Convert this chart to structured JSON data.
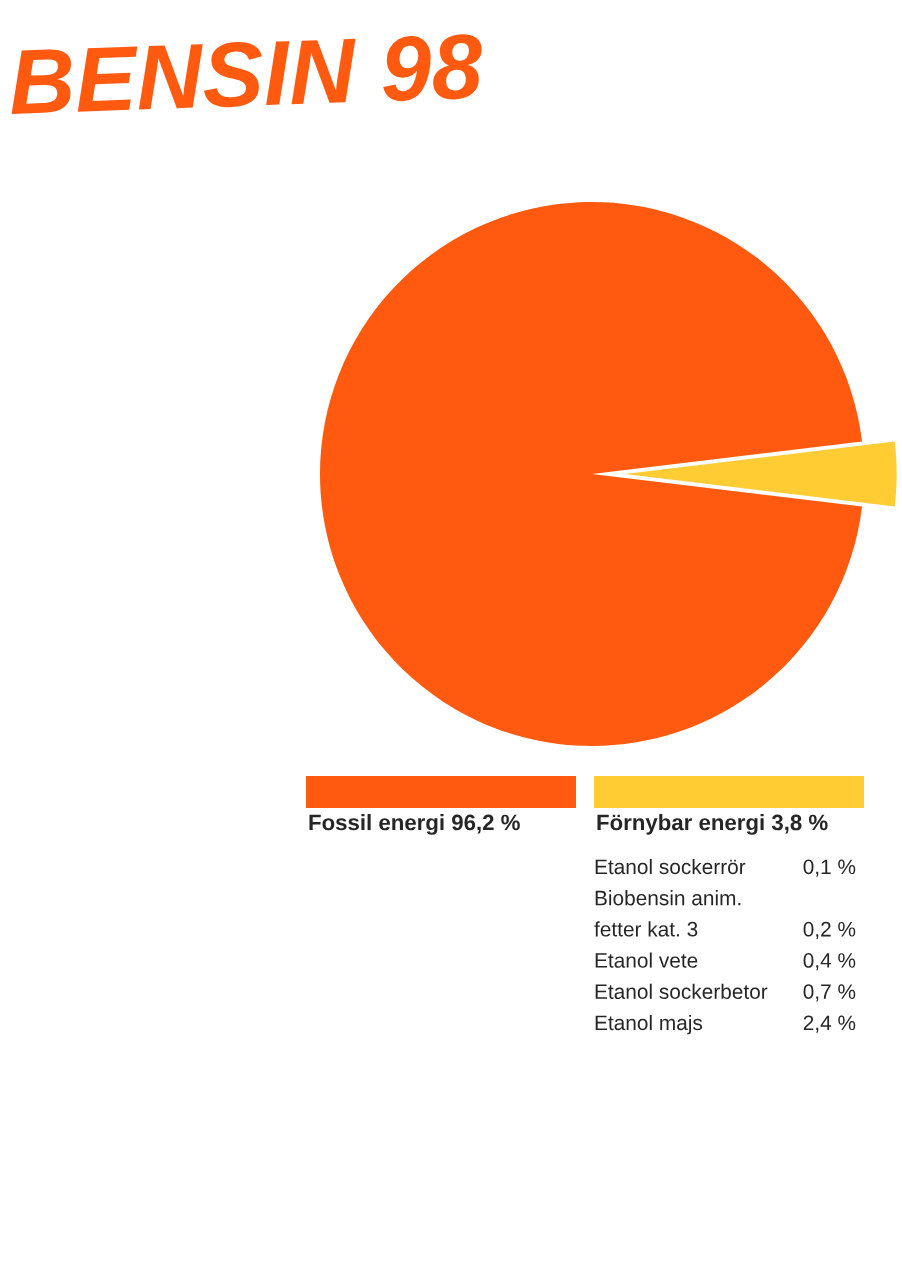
{
  "chart_data": [
    {
      "type": "pie",
      "title": "BENSIN 98",
      "categories": [
        "Fossil energi",
        "Förnybar energi"
      ],
      "values": [
        96.2,
        3.8
      ],
      "value_labels": [
        "96,2 %",
        "3,8 %"
      ],
      "colors": [
        "#ff5a0f",
        "#ffcc33"
      ],
      "legend": "bottom"
    },
    {
      "type": "other",
      "categories": [
        "Etanol sockerrör",
        "Biobensin anim.\nfetter kat. 3",
        "Etanol vete",
        "Etanol sockerbetor",
        "Etanol majs"
      ],
      "values": [
        0.1,
        0.2,
        0.4,
        0.7,
        2.4
      ],
      "value_labels": [
        "0,1 %",
        "0,2 %",
        "0,4 %",
        "0,7 %",
        "2,4 %"
      ]
    }
  ]
}
